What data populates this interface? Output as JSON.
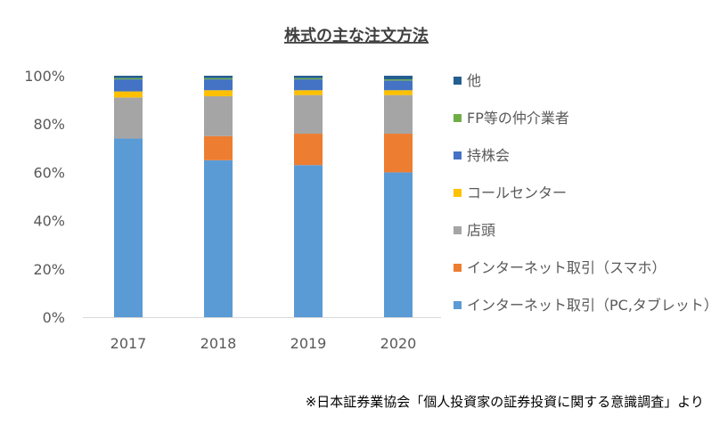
{
  "chart_data": {
    "type": "bar",
    "stacked": true,
    "title": "株式の主な注文方法",
    "categories": [
      "2017",
      "2018",
      "2019",
      "2020"
    ],
    "ylim": [
      0,
      100
    ],
    "yticks": [
      "0%",
      "20%",
      "40%",
      "60%",
      "80%",
      "100%"
    ],
    "series": [
      {
        "name": "インターネット取引（PC,タブレット）",
        "color": "#5b9bd5",
        "values": [
          74.0,
          65.0,
          63.0,
          60.0
        ]
      },
      {
        "name": "インターネット取引（スマホ）",
        "color": "#ed7d31",
        "values": [
          0.0,
          10.0,
          13.0,
          16.0
        ]
      },
      {
        "name": "店頭",
        "color": "#a5a5a5",
        "values": [
          17.0,
          16.5,
          16.0,
          16.0
        ]
      },
      {
        "name": "コールセンター",
        "color": "#ffc000",
        "values": [
          2.5,
          2.5,
          2.0,
          2.0
        ]
      },
      {
        "name": "持株会",
        "color": "#4472c4",
        "values": [
          5.0,
          4.5,
          4.5,
          4.0
        ]
      },
      {
        "name": "FP等の仲介業者",
        "color": "#70ad47",
        "values": [
          0.5,
          0.5,
          0.5,
          0.5
        ]
      },
      {
        "name": "他",
        "color": "#255e91",
        "values": [
          1.0,
          1.0,
          1.0,
          1.5
        ]
      }
    ],
    "legend_position": "right",
    "grid": false
  },
  "footnote": "※日本証券業協会「個人投資家の証券投資に関する意識調査」より"
}
